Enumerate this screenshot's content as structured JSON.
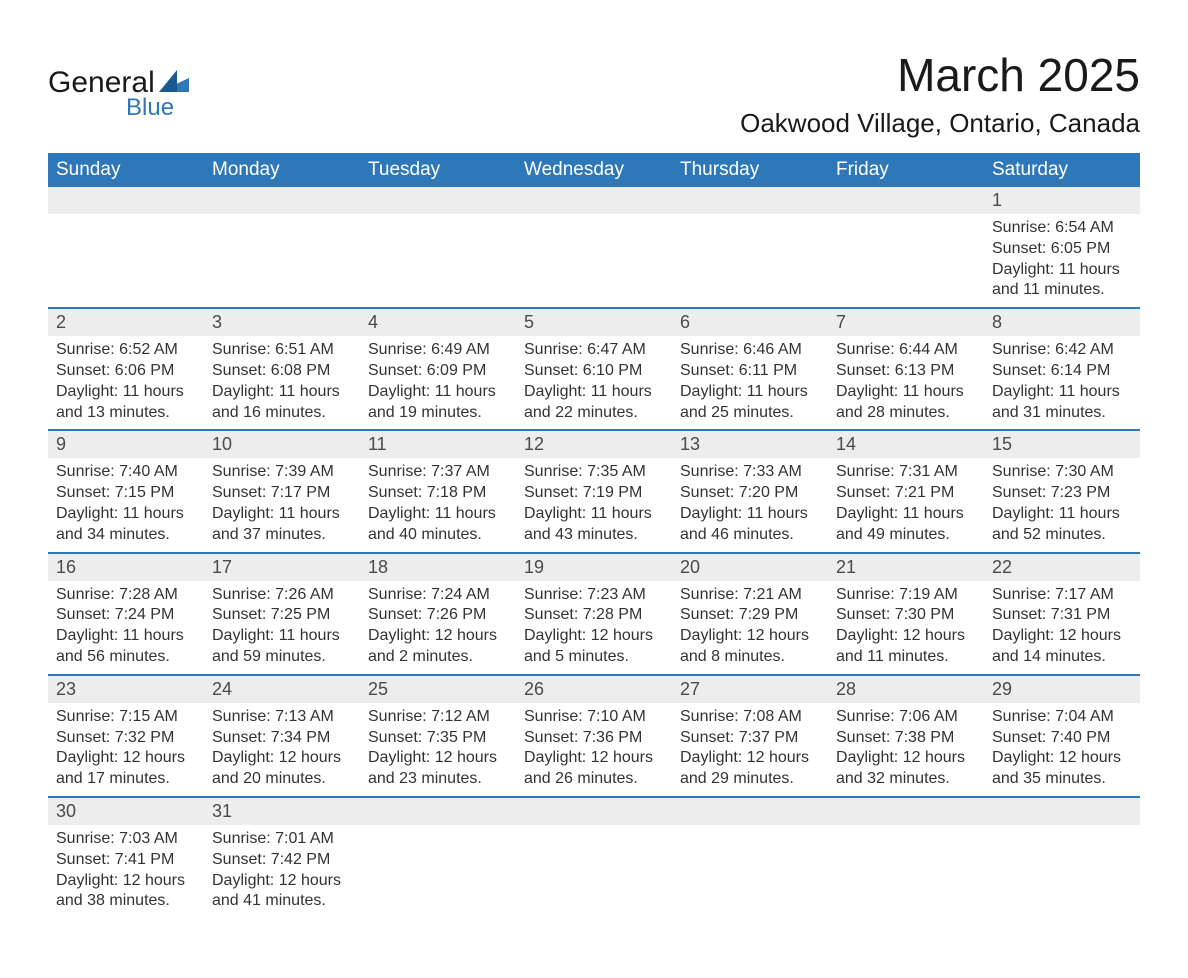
{
  "logo": {
    "line1": "General",
    "line2": "Blue",
    "accent_color": "#2e77b8"
  },
  "title": "March 2025",
  "location": "Oakwood Village, Ontario, Canada",
  "colors": {
    "header_bg": "#2e77b8",
    "header_text": "#ffffff",
    "daynum_bg": "#ededed",
    "row_border": "#2e77b8",
    "text": "#333333",
    "background": "#ffffff"
  },
  "typography": {
    "title_fontsize": 46,
    "location_fontsize": 26,
    "weekday_fontsize": 19,
    "daynum_fontsize": 18,
    "body_fontsize": 16
  },
  "weekdays": [
    "Sunday",
    "Monday",
    "Tuesday",
    "Wednesday",
    "Thursday",
    "Friday",
    "Saturday"
  ],
  "labels": {
    "sunrise": "Sunrise:",
    "sunset": "Sunset:",
    "daylight": "Daylight:"
  },
  "days": [
    {
      "n": 1,
      "sunrise": "6:54 AM",
      "sunset": "6:05 PM",
      "daylight": "11 hours and 11 minutes."
    },
    {
      "n": 2,
      "sunrise": "6:52 AM",
      "sunset": "6:06 PM",
      "daylight": "11 hours and 13 minutes."
    },
    {
      "n": 3,
      "sunrise": "6:51 AM",
      "sunset": "6:08 PM",
      "daylight": "11 hours and 16 minutes."
    },
    {
      "n": 4,
      "sunrise": "6:49 AM",
      "sunset": "6:09 PM",
      "daylight": "11 hours and 19 minutes."
    },
    {
      "n": 5,
      "sunrise": "6:47 AM",
      "sunset": "6:10 PM",
      "daylight": "11 hours and 22 minutes."
    },
    {
      "n": 6,
      "sunrise": "6:46 AM",
      "sunset": "6:11 PM",
      "daylight": "11 hours and 25 minutes."
    },
    {
      "n": 7,
      "sunrise": "6:44 AM",
      "sunset": "6:13 PM",
      "daylight": "11 hours and 28 minutes."
    },
    {
      "n": 8,
      "sunrise": "6:42 AM",
      "sunset": "6:14 PM",
      "daylight": "11 hours and 31 minutes."
    },
    {
      "n": 9,
      "sunrise": "7:40 AM",
      "sunset": "7:15 PM",
      "daylight": "11 hours and 34 minutes."
    },
    {
      "n": 10,
      "sunrise": "7:39 AM",
      "sunset": "7:17 PM",
      "daylight": "11 hours and 37 minutes."
    },
    {
      "n": 11,
      "sunrise": "7:37 AM",
      "sunset": "7:18 PM",
      "daylight": "11 hours and 40 minutes."
    },
    {
      "n": 12,
      "sunrise": "7:35 AM",
      "sunset": "7:19 PM",
      "daylight": "11 hours and 43 minutes."
    },
    {
      "n": 13,
      "sunrise": "7:33 AM",
      "sunset": "7:20 PM",
      "daylight": "11 hours and 46 minutes."
    },
    {
      "n": 14,
      "sunrise": "7:31 AM",
      "sunset": "7:21 PM",
      "daylight": "11 hours and 49 minutes."
    },
    {
      "n": 15,
      "sunrise": "7:30 AM",
      "sunset": "7:23 PM",
      "daylight": "11 hours and 52 minutes."
    },
    {
      "n": 16,
      "sunrise": "7:28 AM",
      "sunset": "7:24 PM",
      "daylight": "11 hours and 56 minutes."
    },
    {
      "n": 17,
      "sunrise": "7:26 AM",
      "sunset": "7:25 PM",
      "daylight": "11 hours and 59 minutes."
    },
    {
      "n": 18,
      "sunrise": "7:24 AM",
      "sunset": "7:26 PM",
      "daylight": "12 hours and 2 minutes."
    },
    {
      "n": 19,
      "sunrise": "7:23 AM",
      "sunset": "7:28 PM",
      "daylight": "12 hours and 5 minutes."
    },
    {
      "n": 20,
      "sunrise": "7:21 AM",
      "sunset": "7:29 PM",
      "daylight": "12 hours and 8 minutes."
    },
    {
      "n": 21,
      "sunrise": "7:19 AM",
      "sunset": "7:30 PM",
      "daylight": "12 hours and 11 minutes."
    },
    {
      "n": 22,
      "sunrise": "7:17 AM",
      "sunset": "7:31 PM",
      "daylight": "12 hours and 14 minutes."
    },
    {
      "n": 23,
      "sunrise": "7:15 AM",
      "sunset": "7:32 PM",
      "daylight": "12 hours and 17 minutes."
    },
    {
      "n": 24,
      "sunrise": "7:13 AM",
      "sunset": "7:34 PM",
      "daylight": "12 hours and 20 minutes."
    },
    {
      "n": 25,
      "sunrise": "7:12 AM",
      "sunset": "7:35 PM",
      "daylight": "12 hours and 23 minutes."
    },
    {
      "n": 26,
      "sunrise": "7:10 AM",
      "sunset": "7:36 PM",
      "daylight": "12 hours and 26 minutes."
    },
    {
      "n": 27,
      "sunrise": "7:08 AM",
      "sunset": "7:37 PM",
      "daylight": "12 hours and 29 minutes."
    },
    {
      "n": 28,
      "sunrise": "7:06 AM",
      "sunset": "7:38 PM",
      "daylight": "12 hours and 32 minutes."
    },
    {
      "n": 29,
      "sunrise": "7:04 AM",
      "sunset": "7:40 PM",
      "daylight": "12 hours and 35 minutes."
    },
    {
      "n": 30,
      "sunrise": "7:03 AM",
      "sunset": "7:41 PM",
      "daylight": "12 hours and 38 minutes."
    },
    {
      "n": 31,
      "sunrise": "7:01 AM",
      "sunset": "7:42 PM",
      "daylight": "12 hours and 41 minutes."
    }
  ],
  "calendar_layout": {
    "first_day_column": 6,
    "days_in_month": 31,
    "columns": 7
  }
}
